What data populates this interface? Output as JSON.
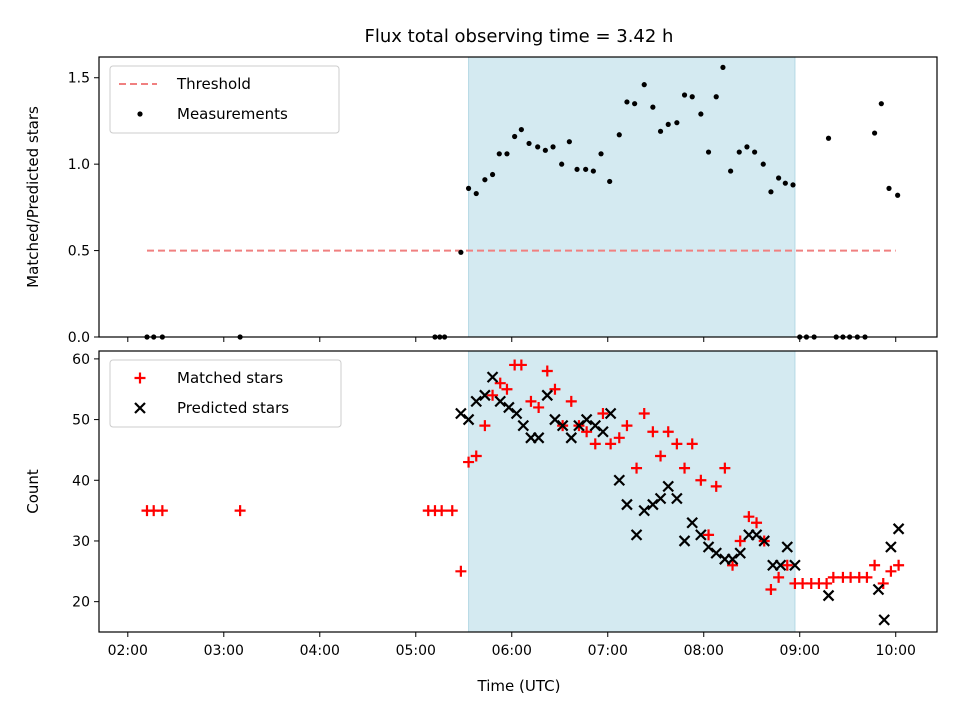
{
  "chart_data": {
    "title": "Flux total observing time = 3.42 h",
    "x_unit": "hours (UTC)",
    "xlim": [
      1.7,
      10.43
    ],
    "xlabel": "Time (UTC)",
    "x_ticks": [
      {
        "value": 2,
        "label": "02:00"
      },
      {
        "value": 3,
        "label": "03:00"
      },
      {
        "value": 4,
        "label": "04:00"
      },
      {
        "value": 5,
        "label": "05:00"
      },
      {
        "value": 6,
        "label": "06:00"
      },
      {
        "value": 7,
        "label": "07:00"
      },
      {
        "value": 8,
        "label": "08:00"
      },
      {
        "value": 9,
        "label": "09:00"
      },
      {
        "value": 10,
        "label": "10:00"
      }
    ],
    "shaded_region": {
      "x_start": 5.55,
      "x_end": 8.95,
      "color": "#d4eaf1"
    },
    "panels": [
      {
        "type": "scatter",
        "ylabel": "Matched/Predicted stars",
        "ylim": [
          0,
          1.62
        ],
        "y_ticks": [
          {
            "value": 0,
            "label": "0.0"
          },
          {
            "value": 0.5,
            "label": "0.5"
          },
          {
            "value": 1.0,
            "label": "1.0"
          },
          {
            "value": 1.5,
            "label": "1.5"
          }
        ],
        "legend": {
          "position": "top-left",
          "entries": [
            {
              "label": "Threshold",
              "style": "dashed-line",
              "color": "#f08080"
            },
            {
              "label": "Measurements",
              "style": "dot",
              "color": "#000000"
            }
          ]
        },
        "threshold": {
          "value": 0.5,
          "x_start": 2.2,
          "x_end": 10.0,
          "color": "#f08080"
        },
        "series": [
          {
            "name": "Measurements",
            "marker": "dot",
            "color": "#000000",
            "points": [
              [
                2.2,
                0
              ],
              [
                2.27,
                0
              ],
              [
                2.36,
                0
              ],
              [
                3.17,
                0
              ],
              [
                5.2,
                0
              ],
              [
                5.25,
                0
              ],
              [
                5.3,
                0
              ],
              [
                5.47,
                0.49
              ],
              [
                5.55,
                0.86
              ],
              [
                5.63,
                0.83
              ],
              [
                5.72,
                0.91
              ],
              [
                5.8,
                0.94
              ],
              [
                5.87,
                1.06
              ],
              [
                5.95,
                1.06
              ],
              [
                6.03,
                1.16
              ],
              [
                6.1,
                1.2
              ],
              [
                6.18,
                1.12
              ],
              [
                6.27,
                1.1
              ],
              [
                6.35,
                1.08
              ],
              [
                6.43,
                1.1
              ],
              [
                6.52,
                1.0
              ],
              [
                6.6,
                1.13
              ],
              [
                6.68,
                0.97
              ],
              [
                6.77,
                0.97
              ],
              [
                6.85,
                0.96
              ],
              [
                6.93,
                1.06
              ],
              [
                7.02,
                0.9
              ],
              [
                7.12,
                1.17
              ],
              [
                7.2,
                1.36
              ],
              [
                7.28,
                1.35
              ],
              [
                7.38,
                1.46
              ],
              [
                7.47,
                1.33
              ],
              [
                7.55,
                1.19
              ],
              [
                7.63,
                1.23
              ],
              [
                7.72,
                1.24
              ],
              [
                7.8,
                1.4
              ],
              [
                7.88,
                1.39
              ],
              [
                7.97,
                1.29
              ],
              [
                8.05,
                1.07
              ],
              [
                8.13,
                1.39
              ],
              [
                8.2,
                1.56
              ],
              [
                8.28,
                0.96
              ],
              [
                8.37,
                1.07
              ],
              [
                8.45,
                1.1
              ],
              [
                8.53,
                1.07
              ],
              [
                8.62,
                1.0
              ],
              [
                8.7,
                0.84
              ],
              [
                8.78,
                0.92
              ],
              [
                8.85,
                0.89
              ],
              [
                8.93,
                0.88
              ],
              [
                9.0,
                0
              ],
              [
                9.07,
                0
              ],
              [
                9.15,
                0
              ],
              [
                9.3,
                1.15
              ],
              [
                9.38,
                0
              ],
              [
                9.45,
                0
              ],
              [
                9.52,
                0
              ],
              [
                9.6,
                0
              ],
              [
                9.68,
                0
              ],
              [
                9.78,
                1.18
              ],
              [
                9.85,
                1.35
              ],
              [
                9.93,
                0.86
              ],
              [
                10.02,
                0.82
              ]
            ]
          }
        ]
      },
      {
        "type": "scatter",
        "ylabel": "Count",
        "ylim": [
          15,
          61.3
        ],
        "y_ticks": [
          {
            "value": 20,
            "label": "20"
          },
          {
            "value": 30,
            "label": "30"
          },
          {
            "value": 40,
            "label": "40"
          },
          {
            "value": 50,
            "label": "50"
          },
          {
            "value": 60,
            "label": "60"
          }
        ],
        "legend": {
          "position": "top-left",
          "entries": [
            {
              "label": "Matched stars",
              "style": "plus",
              "color": "#ff0000"
            },
            {
              "label": "Predicted stars",
              "style": "x",
              "color": "#000000"
            }
          ]
        },
        "series": [
          {
            "name": "Matched stars",
            "marker": "plus",
            "color": "#ff0000",
            "points": [
              [
                2.2,
                35
              ],
              [
                2.27,
                35
              ],
              [
                2.36,
                35
              ],
              [
                3.17,
                35
              ],
              [
                5.13,
                35
              ],
              [
                5.2,
                35
              ],
              [
                5.27,
                35
              ],
              [
                5.38,
                35
              ],
              [
                5.47,
                25
              ],
              [
                5.55,
                43
              ],
              [
                5.63,
                44
              ],
              [
                5.72,
                49
              ],
              [
                5.8,
                54
              ],
              [
                5.88,
                56
              ],
              [
                5.95,
                55
              ],
              [
                6.03,
                59
              ],
              [
                6.1,
                59
              ],
              [
                6.2,
                53
              ],
              [
                6.28,
                52
              ],
              [
                6.37,
                58
              ],
              [
                6.45,
                55
              ],
              [
                6.53,
                49
              ],
              [
                6.62,
                53
              ],
              [
                6.7,
                49
              ],
              [
                6.78,
                48
              ],
              [
                6.87,
                46
              ],
              [
                6.95,
                51
              ],
              [
                7.03,
                46
              ],
              [
                7.12,
                47
              ],
              [
                7.2,
                49
              ],
              [
                7.3,
                42
              ],
              [
                7.38,
                51
              ],
              [
                7.47,
                48
              ],
              [
                7.55,
                44
              ],
              [
                7.63,
                48
              ],
              [
                7.72,
                46
              ],
              [
                7.8,
                42
              ],
              [
                7.88,
                46
              ],
              [
                7.97,
                40
              ],
              [
                8.05,
                31
              ],
              [
                8.13,
                39
              ],
              [
                8.22,
                42
              ],
              [
                8.3,
                26
              ],
              [
                8.38,
                30
              ],
              [
                8.47,
                34
              ],
              [
                8.55,
                33
              ],
              [
                8.63,
                30
              ],
              [
                8.7,
                22
              ],
              [
                8.78,
                24
              ],
              [
                8.87,
                26
              ],
              [
                8.95,
                23
              ],
              [
                9.03,
                23
              ],
              [
                9.12,
                23
              ],
              [
                9.2,
                23
              ],
              [
                9.28,
                23
              ],
              [
                9.35,
                24
              ],
              [
                9.45,
                24
              ],
              [
                9.53,
                24
              ],
              [
                9.62,
                24
              ],
              [
                9.7,
                24
              ],
              [
                9.78,
                26
              ],
              [
                9.87,
                23
              ],
              [
                9.95,
                25
              ],
              [
                10.03,
                26
              ]
            ]
          },
          {
            "name": "Predicted stars",
            "marker": "x",
            "color": "#000000",
            "points": [
              [
                5.47,
                51
              ],
              [
                5.55,
                50
              ],
              [
                5.63,
                53
              ],
              [
                5.72,
                54
              ],
              [
                5.8,
                57
              ],
              [
                5.88,
                53
              ],
              [
                5.97,
                52
              ],
              [
                6.05,
                51
              ],
              [
                6.12,
                49
              ],
              [
                6.2,
                47
              ],
              [
                6.28,
                47
              ],
              [
                6.37,
                54
              ],
              [
                6.45,
                50
              ],
              [
                6.53,
                49
              ],
              [
                6.62,
                47
              ],
              [
                6.7,
                49
              ],
              [
                6.78,
                50
              ],
              [
                6.87,
                49
              ],
              [
                6.95,
                48
              ],
              [
                7.03,
                51
              ],
              [
                7.12,
                40
              ],
              [
                7.2,
                36
              ],
              [
                7.3,
                31
              ],
              [
                7.38,
                35
              ],
              [
                7.47,
                36
              ],
              [
                7.55,
                37
              ],
              [
                7.63,
                39
              ],
              [
                7.72,
                37
              ],
              [
                7.8,
                30
              ],
              [
                7.88,
                33
              ],
              [
                7.97,
                31
              ],
              [
                8.05,
                29
              ],
              [
                8.13,
                28
              ],
              [
                8.22,
                27
              ],
              [
                8.3,
                27
              ],
              [
                8.38,
                28
              ],
              [
                8.47,
                31
              ],
              [
                8.55,
                31
              ],
              [
                8.63,
                30
              ],
              [
                8.72,
                26
              ],
              [
                8.8,
                26
              ],
              [
                8.87,
                29
              ],
              [
                8.95,
                26
              ],
              [
                9.3,
                21
              ],
              [
                9.82,
                22
              ],
              [
                9.88,
                17
              ],
              [
                9.95,
                29
              ],
              [
                10.03,
                32
              ]
            ]
          }
        ]
      }
    ]
  }
}
